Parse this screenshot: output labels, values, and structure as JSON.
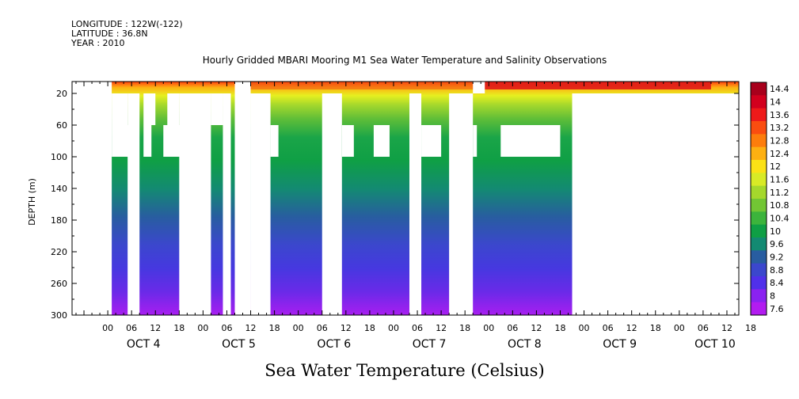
{
  "header": {
    "longitude": "LONGITUDE : 122W(-122)",
    "latitude": "LATITUDE : 36.8N",
    "year": "YEAR : 2010"
  },
  "chart_data": {
    "type": "heatmap",
    "title": "Hourly Gridded MBARI Mooring M1 Sea Water Temperature and Salinity Observations",
    "bottom_title": "Sea Water Temperature (Celsius)",
    "ylabel": "DEPTH (m)",
    "y_ticks": [
      20,
      60,
      100,
      140,
      180,
      220,
      260,
      300
    ],
    "y_range": [
      5,
      300
    ],
    "y_inverted": true,
    "x_range_hours": [
      -9,
      159
    ],
    "x_tick_labels": [
      "00",
      "06",
      "12",
      "18",
      "00",
      "06",
      "12",
      "18",
      "00",
      "06",
      "12",
      "18",
      "00",
      "06",
      "12",
      "18",
      "00",
      "06",
      "12",
      "18",
      "00",
      "06",
      "12",
      "18",
      "00",
      "06",
      "12",
      "18"
    ],
    "day_labels": [
      "OCT  4",
      "OCT  5",
      "OCT  6",
      "OCT  7",
      "OCT  8",
      "OCT  9",
      "OCT 10"
    ],
    "colorbar": {
      "levels": [
        "14.4",
        "14",
        "13.6",
        "13.2",
        "12.8",
        "12.4",
        "12",
        "11.6",
        "11.2",
        "10.8",
        "10.4",
        "10",
        "9.6",
        "9.2",
        "8.8",
        "8.4",
        "8",
        "7.6"
      ],
      "colors": [
        "#a8001c",
        "#d2001e",
        "#ee1a1a",
        "#fa4d10",
        "#fd7d0c",
        "#fdb012",
        "#fbe116",
        "#d8ea26",
        "#a5d82c",
        "#72c634",
        "#3cb43c",
        "#0f9f45",
        "#138a72",
        "#285da0",
        "#3b47cd",
        "#5030ea",
        "#8a22f0",
        "#b21cf0"
      ]
    },
    "profile_example": {
      "depth": [
        5,
        20,
        40,
        60,
        100,
        140,
        180,
        220,
        260,
        300
      ],
      "temperature": [
        12.6,
        11.9,
        11.0,
        10.4,
        10.0,
        9.6,
        9.2,
        8.8,
        8.4,
        8.0
      ]
    }
  }
}
